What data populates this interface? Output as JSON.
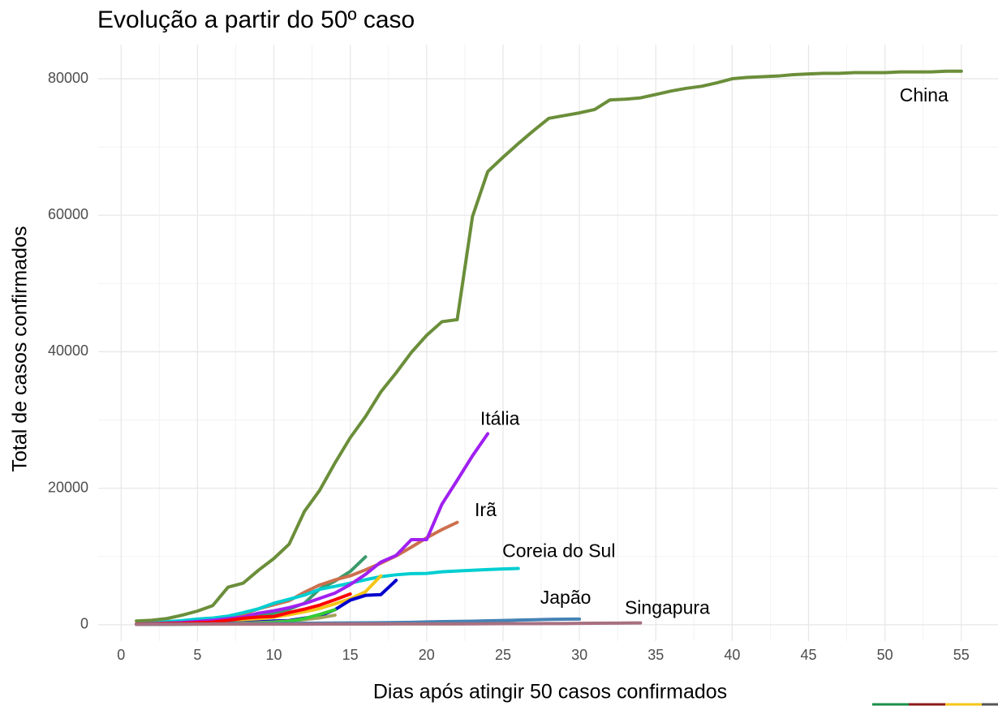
{
  "chart_data": {
    "type": "line",
    "title": "Evolução a partir do 50º caso",
    "x_label": "Dias após atingir 50 casos confirmados",
    "y_label": "Total de casos confirmados",
    "xlim": [
      -1.5,
      57.4
    ],
    "ylim": [
      -2400,
      85000
    ],
    "xticks": [
      0,
      5,
      10,
      15,
      20,
      25,
      30,
      35,
      40,
      45,
      50,
      55
    ],
    "yticks": [
      0,
      20000,
      40000,
      60000,
      80000
    ],
    "grid": true,
    "series": [
      {
        "name": "China",
        "color": "#6b8e3a",
        "x": [
          1,
          2,
          3,
          4,
          5,
          6,
          7,
          8,
          9,
          10,
          11,
          12,
          13,
          14,
          15,
          16,
          17,
          18,
          19,
          20,
          21,
          22,
          23,
          24,
          25,
          26,
          27,
          28,
          29,
          30,
          31,
          32,
          33,
          34,
          35,
          36,
          37,
          38,
          39,
          40,
          41,
          42,
          43,
          44,
          45,
          46,
          47,
          48,
          49,
          50,
          51,
          52,
          53,
          54,
          55
        ],
        "values": [
          550,
          650,
          900,
          1400,
          2000,
          2800,
          5500,
          6100,
          8000,
          9700,
          11800,
          16600,
          19700,
          23700,
          27400,
          30500,
          34100,
          36900,
          39900,
          42400,
          44400,
          44700,
          59800,
          66400,
          68500,
          70500,
          72400,
          74200,
          74600,
          75000,
          75500,
          76900,
          77000,
          77200,
          77700,
          78200,
          78600,
          78900,
          79400,
          80000,
          80200,
          80300,
          80400,
          80600,
          80700,
          80800,
          80800,
          80900,
          80900,
          80900,
          81000,
          81000,
          81000,
          81100,
          81100
        ]
      },
      {
        "color": "#3c9a6b",
        "x": [
          1,
          2,
          3,
          4,
          5,
          6,
          7,
          8,
          9,
          10,
          11,
          12,
          13,
          14,
          15,
          16
        ],
        "values": [
          84,
          120,
          165,
          228,
          282,
          401,
          525,
          674,
          1231,
          1695,
          2277,
          3146,
          5232,
          6391,
          7798,
          9942
        ]
      },
      {
        "name": "Irã",
        "color": "#cd6f4e",
        "x": [
          1,
          2,
          3,
          4,
          5,
          6,
          7,
          8,
          9,
          10,
          11,
          12,
          13,
          14,
          15,
          16,
          17,
          18,
          19,
          20,
          21,
          22
        ],
        "values": [
          61,
          95,
          139,
          245,
          388,
          593,
          978,
          1501,
          2336,
          2922,
          3513,
          4747,
          5823,
          6566,
          7161,
          8042,
          9000,
          10075,
          11364,
          12729,
          13938,
          14991
        ]
      },
      {
        "name": "Coreia do Sul",
        "color": "#00ced1",
        "x": [
          1,
          2,
          3,
          4,
          5,
          6,
          7,
          8,
          9,
          10,
          11,
          12,
          13,
          14,
          15,
          16,
          17,
          18,
          19,
          20,
          21,
          22,
          23,
          24,
          25,
          26
        ],
        "values": [
          104,
          204,
          433,
          602,
          833,
          977,
          1261,
          1766,
          2337,
          3150,
          3736,
          4335,
          5186,
          5621,
          6088,
          6593,
          7041,
          7314,
          7478,
          7513,
          7755,
          7869,
          7979,
          8086,
          8162,
          8236
        ]
      },
      {
        "color": "#f5c518",
        "x": [
          1,
          2,
          3,
          4,
          5,
          6,
          7,
          8,
          9,
          10,
          11,
          12,
          13,
          14,
          15,
          16,
          17
        ],
        "values": [
          66,
          117,
          150,
          188,
          240,
          349,
          534,
          684,
          847,
          1112,
          1460,
          1884,
          2369,
          3062,
          3795,
          4838,
          7156
        ]
      },
      {
        "color": "#0000cd",
        "x": [
          1,
          2,
          3,
          4,
          5,
          6,
          7,
          8,
          9,
          10,
          11,
          12,
          13,
          14,
          15,
          16,
          17,
          18
        ],
        "values": [
          62,
          70,
          76,
          101,
          122,
          153,
          221,
          278,
          417,
          537,
          605,
          959,
          1281,
          2200,
          3600,
          4300,
          4400,
          6500
        ]
      },
      {
        "name": "Itália",
        "color": "#a020f0",
        "x": [
          1,
          2,
          3,
          4,
          5,
          6,
          7,
          8,
          9,
          10,
          11,
          12,
          13,
          14,
          15,
          16,
          17,
          18,
          19,
          20,
          21,
          22,
          23,
          24
        ],
        "values": [
          79,
          157,
          229,
          323,
          470,
          655,
          889,
          1128,
          1694,
          2036,
          2502,
          3089,
          3858,
          4636,
          5883,
          7375,
          9172,
          10149,
          12462,
          12462,
          17660,
          21157,
          24747,
          27980
        ]
      },
      {
        "color": "#a3a35a",
        "x": [
          1,
          2,
          3,
          4,
          5,
          6,
          7,
          8,
          9,
          10,
          11,
          12,
          13,
          14
        ],
        "values": [
          50,
          60,
          70,
          80,
          100,
          130,
          170,
          220,
          300,
          400,
          550,
          750,
          1000,
          1400
        ]
      },
      {
        "color": "#33cc33",
        "x": [
          1,
          2,
          3,
          4,
          5,
          6,
          7,
          8,
          9,
          10,
          11,
          12,
          13,
          14
        ],
        "values": [
          56,
          60,
          65,
          70,
          80,
          95,
          120,
          160,
          220,
          320,
          500,
          900,
          1500,
          2200
        ]
      },
      {
        "color": "#ff0000",
        "x": [
          1,
          2,
          3,
          4,
          5,
          6,
          7,
          8,
          9,
          10,
          11,
          12,
          13,
          14,
          15
        ],
        "values": [
          100,
          130,
          191,
          204,
          285,
          377,
          653,
          949,
          1126,
          1209,
          1784,
          2281,
          2876,
          3661,
          4499
        ]
      },
      {
        "name": "Japão",
        "color": "#4682b4",
        "x": [
          1,
          2,
          3,
          4,
          5,
          6,
          7,
          8,
          9,
          10,
          11,
          12,
          13,
          14,
          15,
          16,
          17,
          18,
          19,
          20,
          21,
          22,
          23,
          24,
          25,
          26,
          27,
          28,
          29,
          30
        ],
        "values": [
          59,
          66,
          73,
          84,
          94,
          105,
          122,
          147,
          159,
          170,
          189,
          210,
          230,
          239,
          254,
          268,
          284,
          317,
          349,
          408,
          455,
          488,
          514,
          568,
          620,
          675,
          716,
          780,
          814,
          829
        ]
      },
      {
        "name": "Singapura",
        "color": "#a87080",
        "x": [
          1,
          2,
          3,
          4,
          5,
          6,
          7,
          8,
          9,
          10,
          11,
          12,
          13,
          14,
          15,
          16,
          17,
          18,
          19,
          20,
          21,
          22,
          23,
          24,
          25,
          26,
          27,
          28,
          29,
          30,
          31,
          32,
          33,
          34
        ],
        "values": [
          58,
          67,
          72,
          75,
          77,
          81,
          84,
          84,
          85,
          85,
          89,
          89,
          91,
          93,
          93,
          93,
          102,
          106,
          108,
          110,
          110,
          117,
          130,
          138,
          150,
          150,
          160,
          178,
          178,
          200,
          212,
          226,
          243,
          266
        ]
      }
    ]
  }
}
